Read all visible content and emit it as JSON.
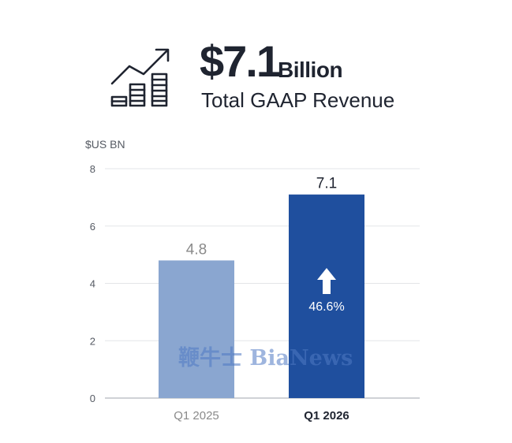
{
  "headline": {
    "value": "$7.1",
    "unit": "Billion",
    "subtitle": "Total GAAP Revenue",
    "icon": "growth-chart-icon"
  },
  "chart_data": {
    "type": "bar",
    "title": "",
    "unit_label": "$US BN",
    "xlabel": "",
    "ylabel": "",
    "ylim": [
      0,
      8
    ],
    "yticks": [
      0,
      2,
      4,
      6,
      8
    ],
    "categories": [
      "Q1 2025",
      "Q1 2026"
    ],
    "values": [
      4.8,
      7.1
    ],
    "data_labels": [
      "4.8",
      "7.1"
    ],
    "bar_colors": [
      "#8aa6d0",
      "#1f4f9e"
    ],
    "category_label_colors": [
      "#8a8a8a",
      "#1f2430"
    ],
    "data_label_colors": [
      "#8a8a8a",
      "#1f2430"
    ],
    "grid": true,
    "annotation": {
      "category": "Q1 2026",
      "text": "46.6%",
      "icon": "up-arrow-icon",
      "color": "#ffffff"
    }
  },
  "watermark": {
    "text": "鞭牛士 BiaNews"
  }
}
